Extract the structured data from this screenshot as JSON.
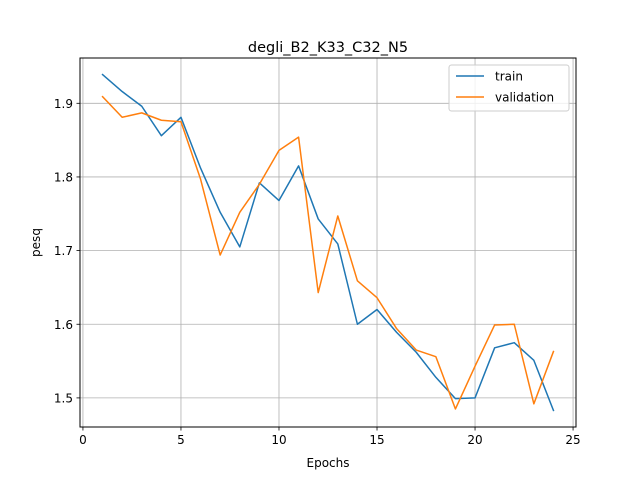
{
  "chart_data": {
    "type": "line",
    "title": "degli_B2_K33_C32_N5",
    "xlabel": "Epochs",
    "ylabel": "pesq",
    "xlim": [
      -0.15,
      25.15
    ],
    "ylim": [
      1.4605,
      1.9615
    ],
    "xticks": [
      0,
      5,
      10,
      15,
      20,
      25
    ],
    "yticks": [
      1.5,
      1.6,
      1.7,
      1.8,
      1.9
    ],
    "ytick_labels": [
      "1.5",
      "1.6",
      "1.7",
      "1.8",
      "1.9"
    ],
    "grid": true,
    "legend_position": "top-right",
    "x": [
      1,
      2,
      3,
      4,
      5,
      6,
      7,
      8,
      9,
      10,
      11,
      12,
      13,
      14,
      15,
      16,
      17,
      18,
      19,
      20,
      21,
      22,
      23,
      24
    ],
    "series": [
      {
        "name": "train",
        "color": "#1f77b4",
        "values": [
          1.939,
          1.916,
          1.896,
          1.856,
          1.881,
          1.812,
          1.752,
          1.705,
          1.792,
          1.768,
          1.815,
          1.743,
          1.709,
          1.6,
          1.62,
          1.589,
          1.562,
          1.528,
          1.499,
          1.5,
          1.568,
          1.575,
          1.551,
          1.483
        ]
      },
      {
        "name": "validation",
        "color": "#ff7f0e",
        "values": [
          1.909,
          1.881,
          1.887,
          1.877,
          1.875,
          1.797,
          1.694,
          1.752,
          1.79,
          1.836,
          1.854,
          1.643,
          1.747,
          1.659,
          1.636,
          1.594,
          1.565,
          1.556,
          1.485,
          1.543,
          1.599,
          1.6,
          1.492,
          1.563
        ]
      }
    ]
  }
}
